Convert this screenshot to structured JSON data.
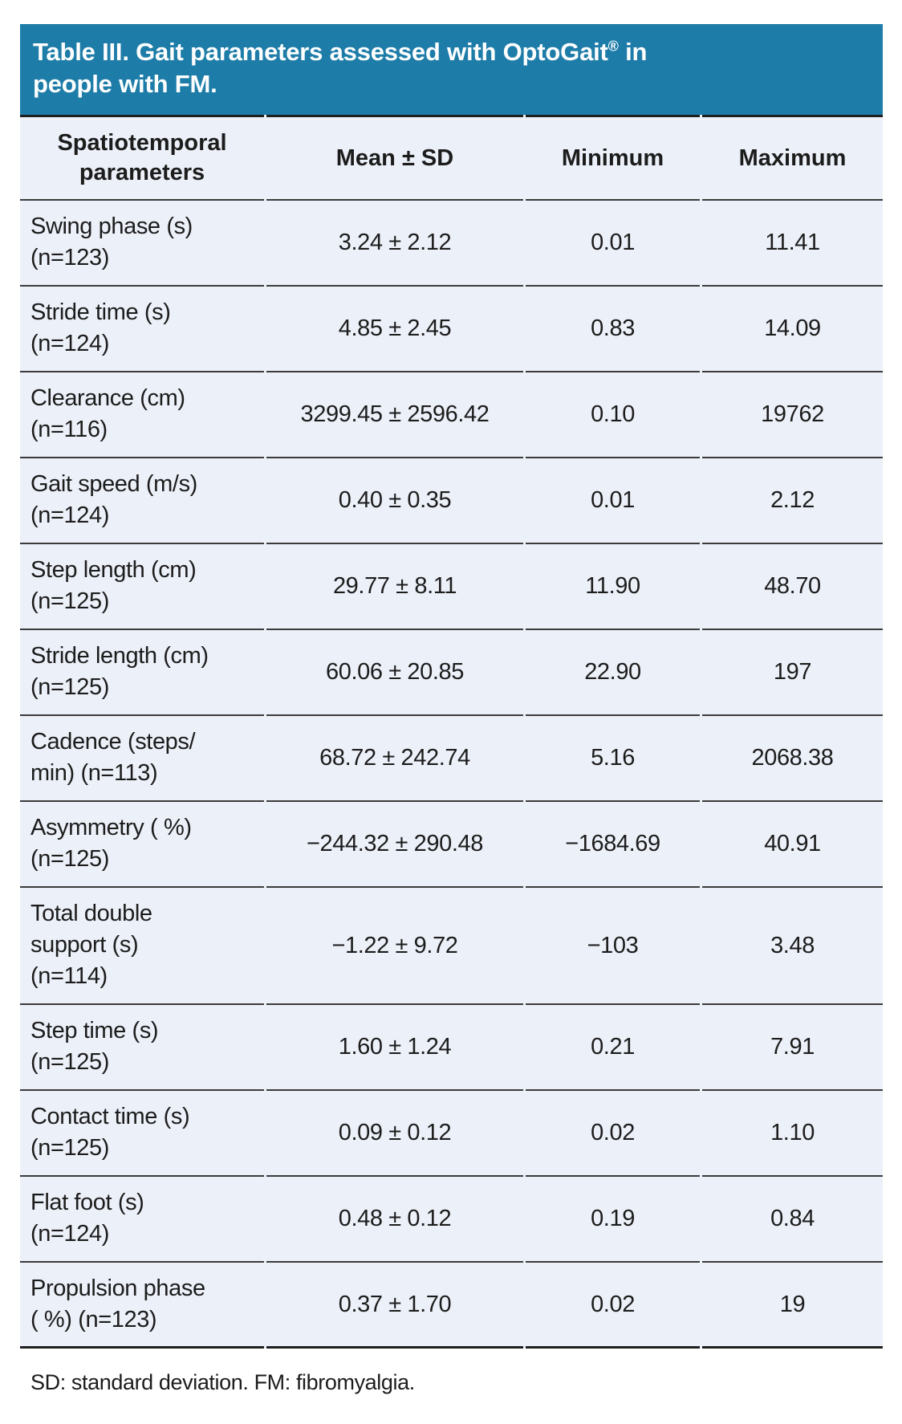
{
  "title": {
    "line1_pre": "Table III. Gait parameters assessed with OptoGait",
    "line1_sup": "®",
    "line1_post": " in",
    "line2": "people with FM."
  },
  "colors": {
    "title_band_bg": "#1e7da8",
    "title_text": "#ffffff",
    "row_bg": "#ecf0f8",
    "rule": "#3b3b3b",
    "heavy_rule": "#1f1f1f",
    "body_text": "#1c1c1c"
  },
  "columns": {
    "parameters": "Spatiotemporal parameters",
    "mean_sd": "Mean ± SD",
    "minimum": "Minimum",
    "maximum": "Maximum"
  },
  "table": {
    "rows": [
      {
        "param_lines": [
          "Swing phase (s)",
          "(n=123)"
        ],
        "mean_sd": "3.24 ± 2.12",
        "min": "0.01",
        "max": "11.41"
      },
      {
        "param_lines": [
          "Stride time (s)",
          "(n=124)"
        ],
        "mean_sd": "4.85 ± 2.45",
        "min": "0.83",
        "max": "14.09"
      },
      {
        "param_lines": [
          "Clearance (cm)",
          "(n=116)"
        ],
        "mean_sd": "3299.45 ± 2596.42",
        "min": "0.10",
        "max": "19762"
      },
      {
        "param_lines": [
          "Gait speed (m/s)",
          "(n=124)"
        ],
        "mean_sd": "0.40 ± 0.35",
        "min": "0.01",
        "max": "2.12"
      },
      {
        "param_lines": [
          "Step length (cm)",
          "(n=125)"
        ],
        "mean_sd": "29.77 ± 8.11",
        "min": "11.90",
        "max": "48.70"
      },
      {
        "param_lines": [
          "Stride length (cm)",
          "(n=125)"
        ],
        "mean_sd": "60.06 ± 20.85",
        "min": "22.90",
        "max": "197"
      },
      {
        "param_lines": [
          "Cadence (steps/",
          "min) (n=113)"
        ],
        "mean_sd": "68.72 ± 242.74",
        "min": "5.16",
        "max": "2068.38"
      },
      {
        "param_lines": [
          "Asymmetry ( %)",
          "(n=125)"
        ],
        "mean_sd": "−244.32 ± 290.48",
        "min": "−1684.69",
        "max": "40.91"
      },
      {
        "param_lines": [
          "Total double",
          "support (s)",
          "(n=114)"
        ],
        "mean_sd": "−1.22 ± 9.72",
        "min": "−103",
        "max": "3.48"
      },
      {
        "param_lines": [
          "Step time (s)",
          "(n=125)"
        ],
        "mean_sd": "1.60 ± 1.24",
        "min": "0.21",
        "max": "7.91"
      },
      {
        "param_lines": [
          "Contact time (s)",
          "(n=125)"
        ],
        "mean_sd": "0.09 ± 0.12",
        "min": "0.02",
        "max": "1.10"
      },
      {
        "param_lines": [
          "Flat foot (s)",
          "(n=124)"
        ],
        "mean_sd": "0.48 ± 0.12",
        "min": "0.19",
        "max": "0.84"
      },
      {
        "param_lines": [
          "Propulsion phase",
          "( %) (n=123)"
        ],
        "mean_sd": "0.37 ± 1.70",
        "min": "0.02",
        "max": "19"
      }
    ]
  },
  "footnote": "SD: standard deviation. FM: fibromyalgia."
}
